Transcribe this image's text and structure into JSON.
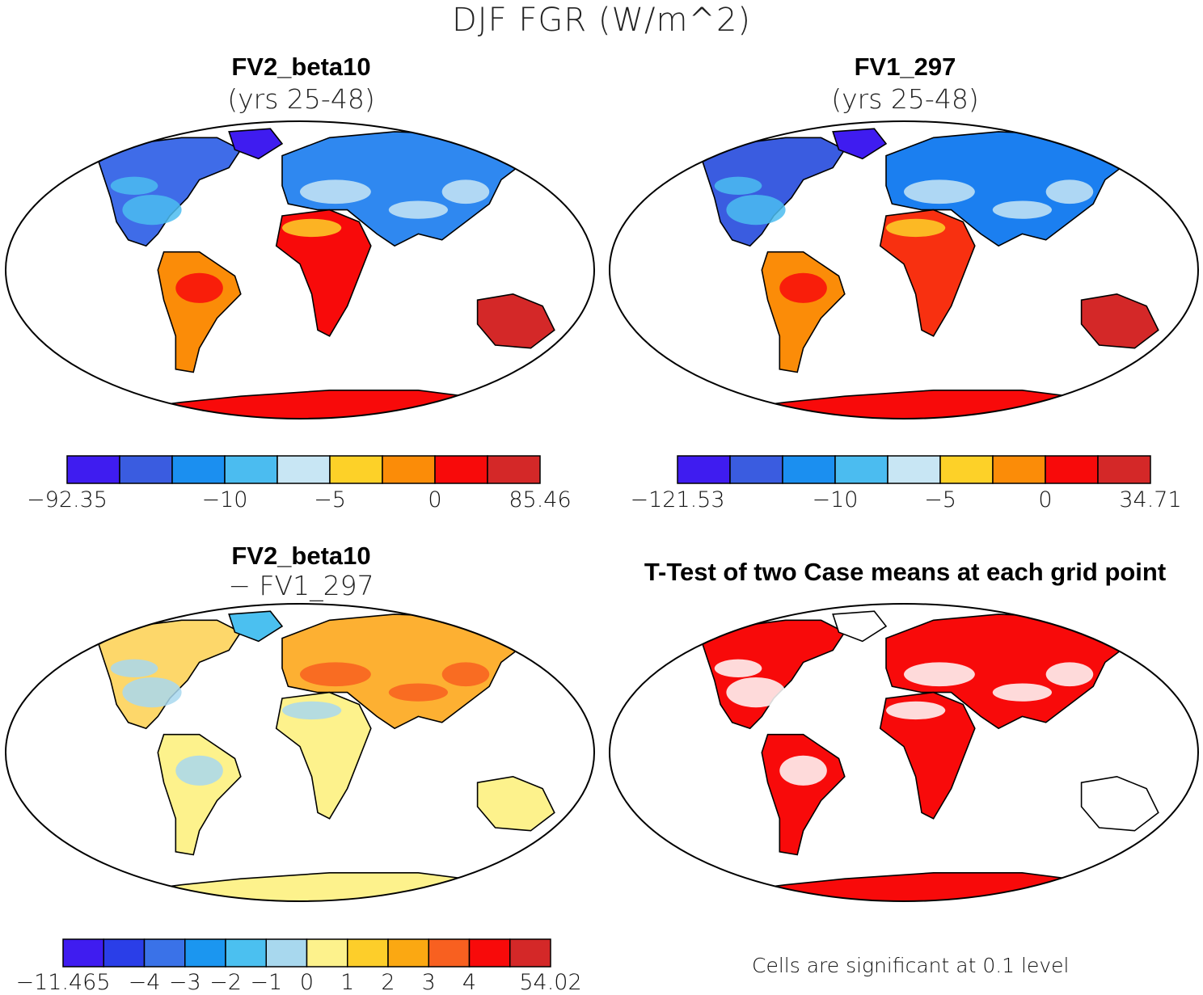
{
  "figure": {
    "title": "DJF FGR (W/m^2)"
  },
  "panels": [
    {
      "id": "top-left",
      "title": "FV2_beta10",
      "subtitle": "(yrs 25-48)",
      "colorbar": {
        "colors": [
          "#3f1cf0",
          "#3a5ce0",
          "#1b8ff0",
          "#4bbcf0",
          "#c8e6f4",
          "#fdd128",
          "#fb8c08",
          "#f80a0a",
          "#d42828"
        ],
        "labels": [
          "−92.35",
          "−10",
          "−5",
          "0",
          "85.46"
        ]
      }
    },
    {
      "id": "top-right",
      "title": "FV1_297",
      "subtitle": "(yrs 25-48)",
      "colorbar": {
        "colors": [
          "#3f1cf0",
          "#3a5ce0",
          "#1b8ff0",
          "#4bbcf0",
          "#c8e6f4",
          "#fdd128",
          "#fb8c08",
          "#f80a0a",
          "#d42828"
        ],
        "labels": [
          "−121.53",
          "−10",
          "−5",
          "0",
          "34.71"
        ]
      }
    },
    {
      "id": "bottom-left",
      "title": "FV2_beta10",
      "subtitle": "− FV1_297",
      "colorbar": {
        "colors": [
          "#3f1cf0",
          "#2a3ee8",
          "#3a72e8",
          "#1b96f0",
          "#4bc0f0",
          "#a8d8ee",
          "#fdf28c",
          "#fdce2a",
          "#fba812",
          "#f86020",
          "#f80a0a",
          "#d42828"
        ],
        "labels": [
          "−11.465",
          "−4",
          "−3",
          "−2",
          "−1",
          "0",
          "1",
          "2",
          "3",
          "4",
          "54.02"
        ]
      }
    },
    {
      "id": "bottom-right",
      "title": "T-Test of two Case means at each grid point",
      "note": "Cells are significant at 0.1 level"
    }
  ]
}
